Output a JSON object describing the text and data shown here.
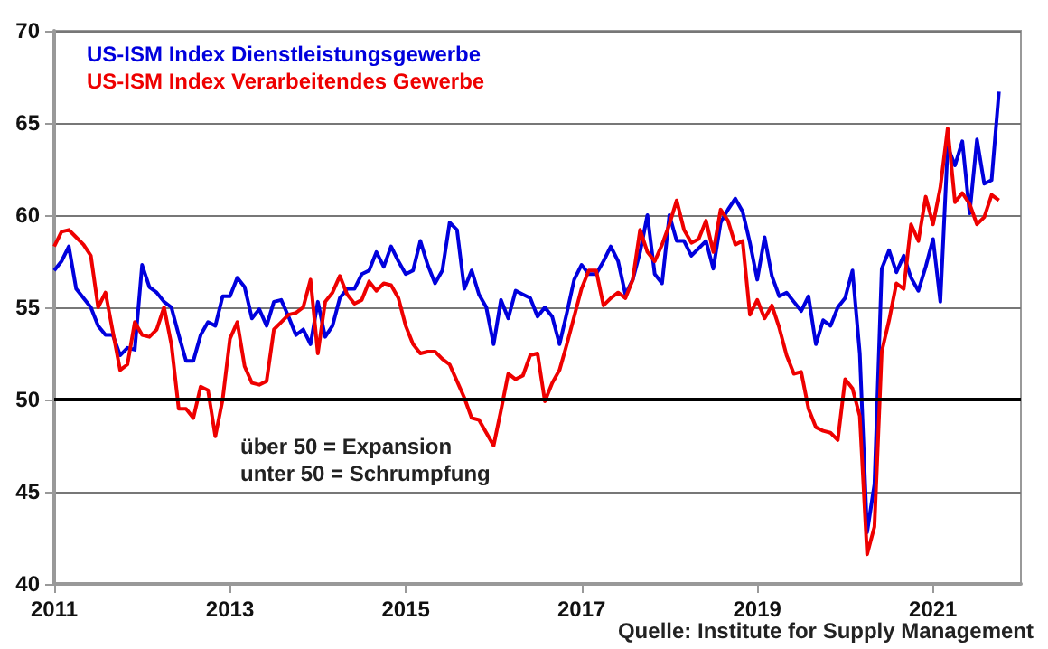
{
  "chart_data": {
    "type": "line",
    "x": [
      "2011-01",
      "2011-02",
      "2011-03",
      "2011-04",
      "2011-05",
      "2011-06",
      "2011-07",
      "2011-08",
      "2011-09",
      "2011-10",
      "2011-11",
      "2011-12",
      "2012-01",
      "2012-02",
      "2012-03",
      "2012-04",
      "2012-05",
      "2012-06",
      "2012-07",
      "2012-08",
      "2012-09",
      "2012-10",
      "2012-11",
      "2012-12",
      "2013-01",
      "2013-02",
      "2013-03",
      "2013-04",
      "2013-05",
      "2013-06",
      "2013-07",
      "2013-08",
      "2013-09",
      "2013-10",
      "2013-11",
      "2013-12",
      "2014-01",
      "2014-02",
      "2014-03",
      "2014-04",
      "2014-05",
      "2014-06",
      "2014-07",
      "2014-08",
      "2014-09",
      "2014-10",
      "2014-11",
      "2014-12",
      "2015-01",
      "2015-02",
      "2015-03",
      "2015-04",
      "2015-05",
      "2015-06",
      "2015-07",
      "2015-08",
      "2015-09",
      "2015-10",
      "2015-11",
      "2015-12",
      "2016-01",
      "2016-02",
      "2016-03",
      "2016-04",
      "2016-05",
      "2016-06",
      "2016-07",
      "2016-08",
      "2016-09",
      "2016-10",
      "2016-11",
      "2016-12",
      "2017-01",
      "2017-02",
      "2017-03",
      "2017-04",
      "2017-05",
      "2017-06",
      "2017-07",
      "2017-08",
      "2017-09",
      "2017-10",
      "2017-11",
      "2017-12",
      "2018-01",
      "2018-02",
      "2018-03",
      "2018-04",
      "2018-05",
      "2018-06",
      "2018-07",
      "2018-08",
      "2018-09",
      "2018-10",
      "2018-11",
      "2018-12",
      "2019-01",
      "2019-02",
      "2019-03",
      "2019-04",
      "2019-05",
      "2019-06",
      "2019-07",
      "2019-08",
      "2019-09",
      "2019-10",
      "2019-11",
      "2019-12",
      "2020-01",
      "2020-02",
      "2020-03",
      "2020-04",
      "2020-05",
      "2020-06",
      "2020-07",
      "2020-08",
      "2020-09",
      "2020-10",
      "2020-11",
      "2020-12",
      "2021-01",
      "2021-02",
      "2021-03",
      "2021-04",
      "2021-05",
      "2021-06",
      "2021-07",
      "2021-08",
      "2021-09",
      "2021-10"
    ],
    "series": [
      {
        "name": "US-ISM Index Dienstleistungsgewerbe",
        "color": "#0000dd",
        "values": [
          57.0,
          57.5,
          58.3,
          56.0,
          55.5,
          55.0,
          54.0,
          53.5,
          53.5,
          52.4,
          52.8,
          52.7,
          57.3,
          56.1,
          55.8,
          55.3,
          55.0,
          53.5,
          52.1,
          52.1,
          53.5,
          54.2,
          54.0,
          55.6,
          55.6,
          56.6,
          56.1,
          54.4,
          54.9,
          54.0,
          55.3,
          55.4,
          54.5,
          53.5,
          53.8,
          53.0,
          55.3,
          53.4,
          54.0,
          55.5,
          56.0,
          56.0,
          56.8,
          57.0,
          58.0,
          57.2,
          58.3,
          57.5,
          56.8,
          57.0,
          58.6,
          57.3,
          56.3,
          57.0,
          59.6,
          59.2,
          56.0,
          57.0,
          55.7,
          55.0,
          53.0,
          55.4,
          54.4,
          55.9,
          55.7,
          55.5,
          54.5,
          55.0,
          54.5,
          53.0,
          54.7,
          56.5,
          57.3,
          56.8,
          56.8,
          57.5,
          58.3,
          57.5,
          55.7,
          56.5,
          58.0,
          60.0,
          56.8,
          56.3,
          60.0,
          58.6,
          58.6,
          57.8,
          58.2,
          58.6,
          57.1,
          59.6,
          60.3,
          60.9,
          60.2,
          58.5,
          56.5,
          58.8,
          56.7,
          55.6,
          55.8,
          55.3,
          54.8,
          55.6,
          53.0,
          54.3,
          54.0,
          55.0,
          55.5,
          57.0,
          52.5,
          42.8,
          45.4,
          57.1,
          58.1,
          56.9,
          57.8,
          56.6,
          55.9,
          57.2,
          58.7,
          55.3,
          63.7,
          62.7,
          64.0,
          60.1,
          64.1,
          61.7,
          61.9,
          66.7
        ]
      },
      {
        "name": "US-ISM Index Verarbeitendes Gewerbe",
        "color": "#ee0000",
        "values": [
          58.3,
          59.1,
          59.2,
          58.8,
          58.4,
          57.8,
          55.0,
          55.8,
          53.7,
          51.6,
          51.9,
          54.2,
          53.5,
          53.4,
          53.8,
          55.0,
          53.0,
          49.5,
          49.5,
          49.0,
          50.7,
          50.5,
          48.0,
          50.0,
          53.3,
          54.2,
          51.8,
          50.9,
          50.8,
          51.0,
          53.8,
          54.2,
          54.6,
          54.7,
          55.0,
          56.5,
          52.5,
          55.3,
          55.8,
          56.7,
          55.7,
          55.2,
          55.4,
          56.4,
          55.9,
          56.3,
          56.2,
          55.5,
          54.0,
          53.0,
          52.5,
          52.6,
          52.6,
          52.2,
          51.9,
          51.0,
          50.1,
          49.0,
          48.9,
          48.2,
          47.5,
          49.4,
          51.4,
          51.1,
          51.3,
          52.4,
          52.5,
          49.9,
          50.9,
          51.6,
          53.0,
          54.5,
          56.0,
          57.0,
          57.0,
          55.1,
          55.5,
          55.8,
          55.5,
          56.5,
          59.2,
          58.0,
          57.5,
          58.4,
          59.5,
          60.8,
          59.2,
          58.5,
          58.7,
          59.7,
          58.0,
          60.3,
          59.7,
          58.4,
          58.6,
          54.6,
          55.4,
          54.4,
          55.1,
          53.9,
          52.4,
          51.4,
          51.5,
          49.5,
          48.5,
          48.3,
          48.2,
          47.8,
          51.1,
          50.6,
          49.1,
          41.6,
          43.1,
          52.6,
          54.3,
          56.3,
          56.0,
          59.5,
          58.6,
          61.0,
          59.5,
          61.5,
          64.7,
          60.7,
          61.2,
          60.6,
          59.5,
          59.9,
          61.1,
          60.8
        ]
      }
    ],
    "xlim": [
      "2011",
      "2022"
    ],
    "xticks": [
      "2011",
      "2013",
      "2015",
      "2017",
      "2019",
      "2021"
    ],
    "ylim": [
      40,
      70
    ],
    "yticks": [
      40,
      45,
      50,
      55,
      60,
      65,
      70
    ],
    "ref_lines": [
      {
        "axis": "y",
        "value": 50,
        "color": "#000000"
      }
    ],
    "annotations": [
      "über 50 = Expansion",
      "unter 50 = Schrumpfung",
      "Quelle: Institute for Supply Management"
    ],
    "grid": "y",
    "legend": "top left",
    "marker": "none",
    "line_style": "solid"
  }
}
